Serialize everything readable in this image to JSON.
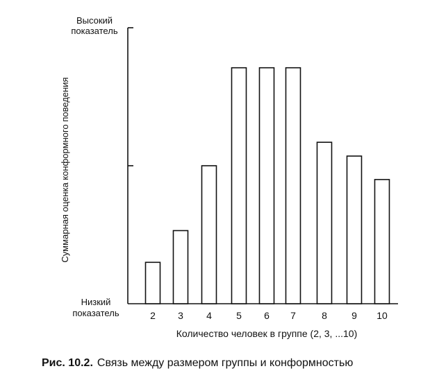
{
  "chart_data": {
    "type": "bar",
    "categories": [
      "2",
      "3",
      "4",
      "5",
      "6",
      "7",
      "8",
      "9",
      "10"
    ],
    "values": [
      30,
      53,
      100,
      171,
      171,
      171,
      117,
      107,
      90
    ],
    "ylim": [
      0,
      200
    ],
    "ylabel": "Суммарная оценка конформного поведения",
    "xlabel": "Количество человек в группе (2, 3, ...10)",
    "y_top_label": [
      "Высокий",
      "показатель"
    ],
    "y_bottom_label": [
      "Низкий",
      "показатель"
    ],
    "grid": false,
    "colors": {
      "bar_fill": "#ffffff",
      "bar_stroke": "#111111",
      "axis": "#111111"
    }
  },
  "caption": {
    "prefix": "Рис. 10.2.",
    "text": "Связь между размером группы и конформностью"
  }
}
